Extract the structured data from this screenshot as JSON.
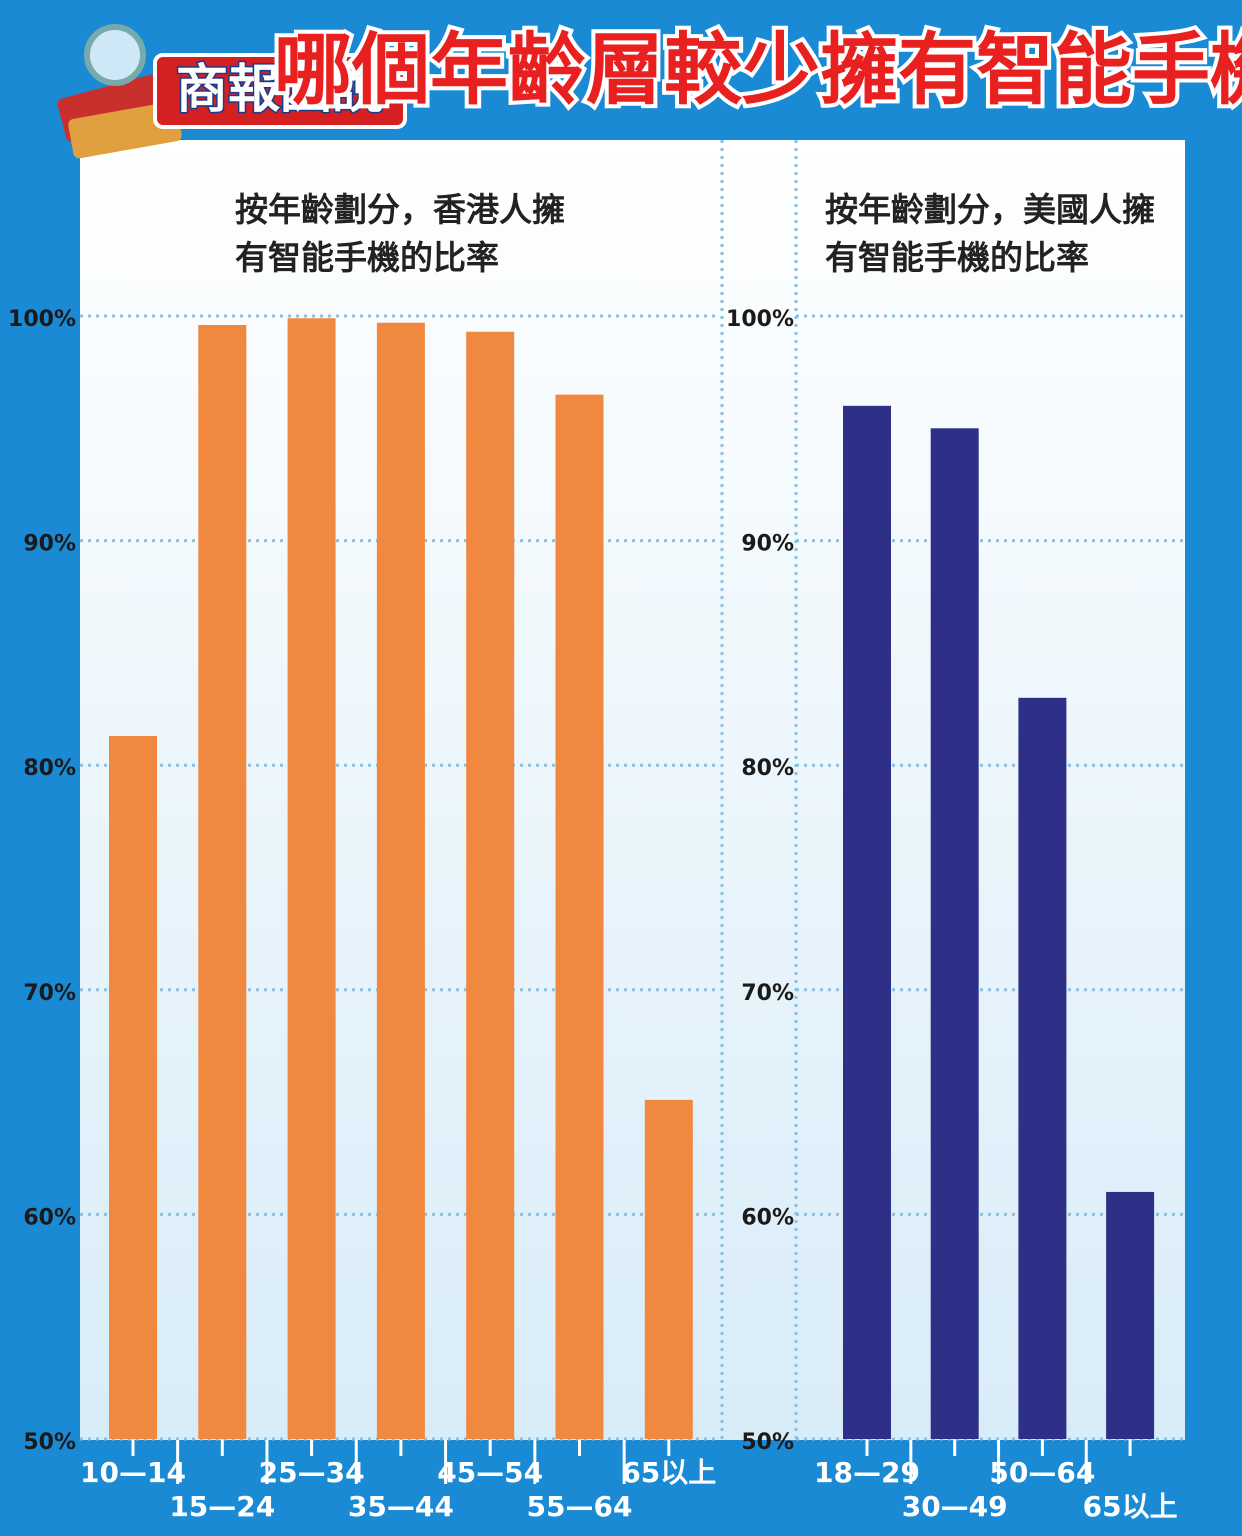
{
  "header": {
    "badge": "商報圖說",
    "title": "哪個年齡層較少擁有智能手機？"
  },
  "chart_data": [
    {
      "type": "bar",
      "title": "按年齡劃分，香港人擁有智能手機的比率",
      "categories": [
        "10—14",
        "15—24",
        "25—34",
        "35—44",
        "45—54",
        "55—64",
        "65以上"
      ],
      "values": [
        81.3,
        99.6,
        99.9,
        99.7,
        99.3,
        96.5,
        65.1
      ],
      "color": "#f0883f",
      "ylim": [
        50,
        100
      ],
      "yticks": [
        {
          "value": 50,
          "label": "50%"
        },
        {
          "value": 60,
          "label": "60%"
        },
        {
          "value": 70,
          "label": "70%"
        },
        {
          "value": 80,
          "label": "80%"
        },
        {
          "value": 90,
          "label": "90%"
        },
        {
          "value": 100,
          "label": "100%"
        }
      ],
      "grid": true
    },
    {
      "type": "bar",
      "title": "按年齡劃分，美國人擁有智能手機的比率",
      "categories": [
        "18—29",
        "30—49",
        "50—64",
        "65以上"
      ],
      "values": [
        96,
        95,
        83,
        61
      ],
      "color": "#2e3088",
      "ylim": [
        50,
        100
      ],
      "yticks": [
        {
          "value": 50,
          "label": "50%"
        },
        {
          "value": 60,
          "label": "60%"
        },
        {
          "value": 70,
          "label": "70%"
        },
        {
          "value": 80,
          "label": "80%"
        },
        {
          "value": 90,
          "label": "90%"
        },
        {
          "value": 100,
          "label": "100%"
        }
      ],
      "grid": true
    }
  ]
}
